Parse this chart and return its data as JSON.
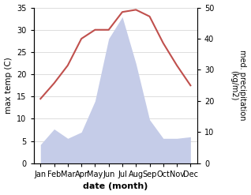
{
  "months": [
    "Jan",
    "Feb",
    "Mar",
    "Apr",
    "May",
    "Jun",
    "Jul",
    "Aug",
    "Sep",
    "Oct",
    "Nov",
    "Dec"
  ],
  "temperature": [
    14.5,
    18.0,
    22.0,
    28.0,
    30.0,
    30.0,
    34.0,
    34.5,
    33.0,
    27.0,
    22.0,
    17.5
  ],
  "precipitation": [
    6.0,
    11.0,
    8.0,
    10.0,
    20.0,
    40.0,
    47.0,
    32.0,
    14.0,
    8.0,
    8.0,
    8.5
  ],
  "temp_color": "#c0504d",
  "precip_fill_color": "#c5cce8",
  "ylabel_left": "max temp (C)",
  "ylabel_right": "med. precipitation\n(kg/m2)",
  "xlabel": "date (month)",
  "ylim_left": [
    0,
    35
  ],
  "ylim_right": [
    0,
    50
  ],
  "yticks_left": [
    0,
    5,
    10,
    15,
    20,
    25,
    30,
    35
  ],
  "yticks_right": [
    0,
    10,
    20,
    30,
    40,
    50
  ],
  "figsize": [
    3.18,
    2.47
  ],
  "dpi": 100
}
